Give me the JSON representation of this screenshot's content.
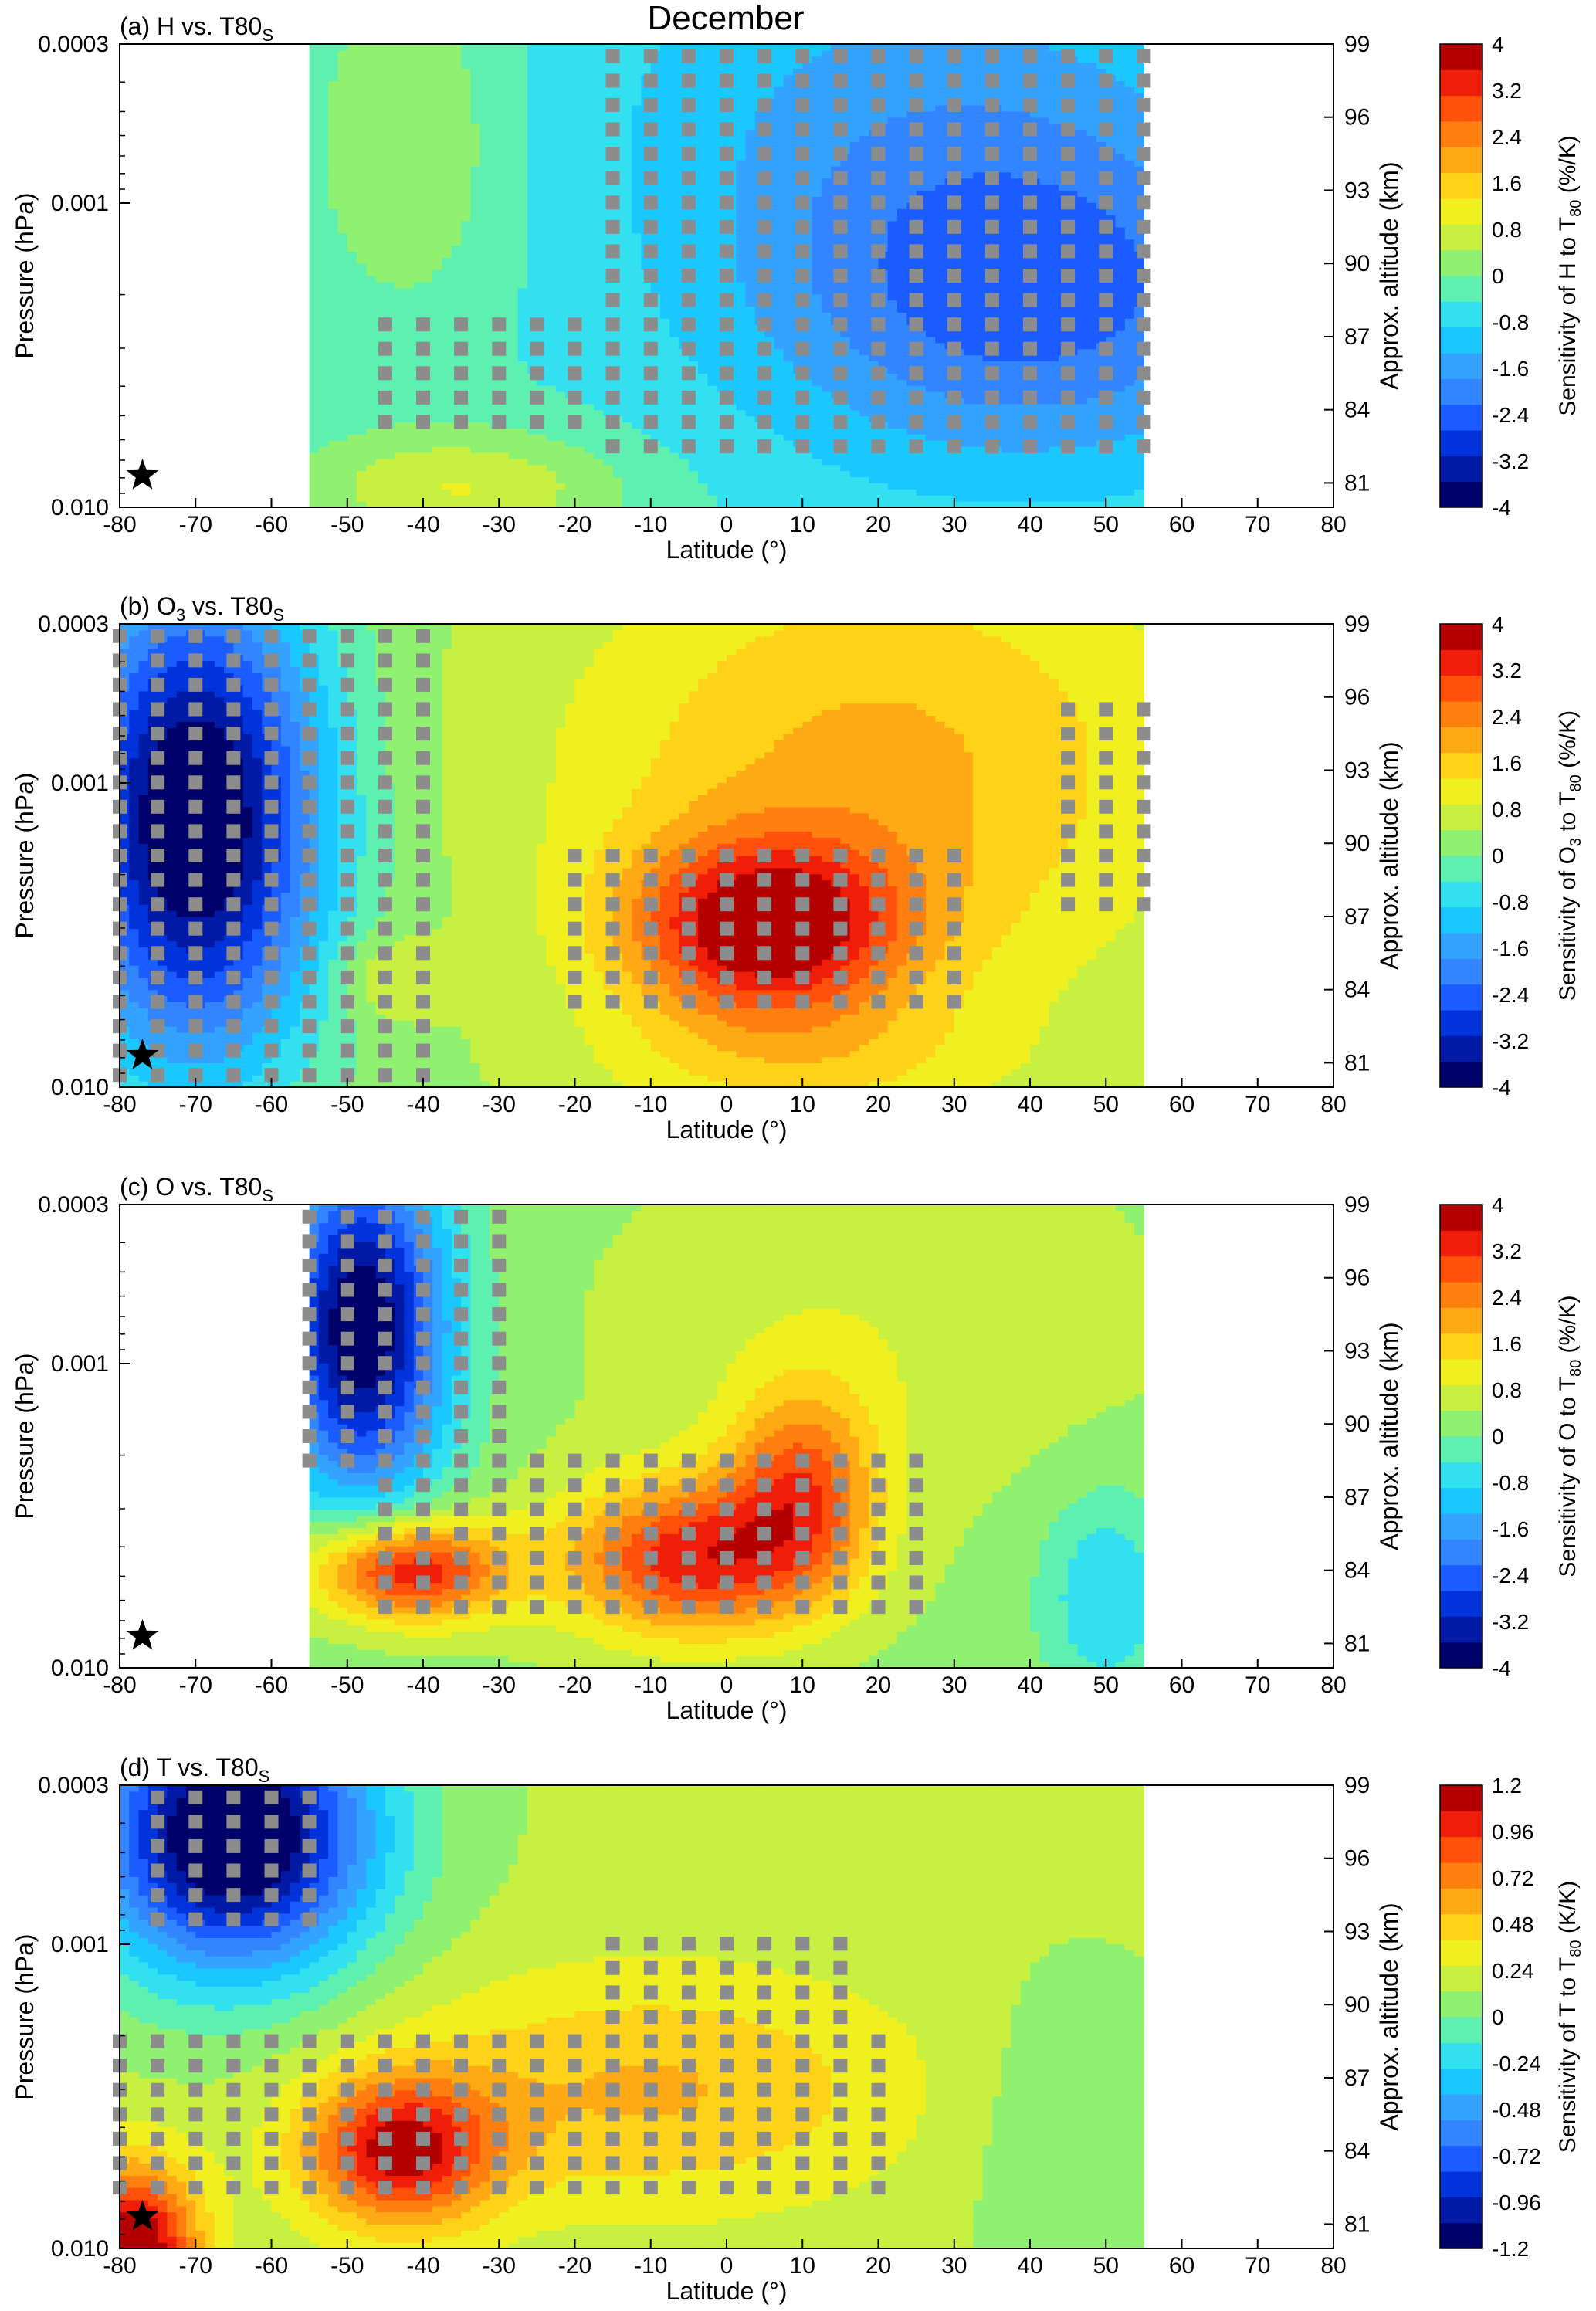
{
  "figure": {
    "title": "December",
    "xlabel": "Latitude (°)",
    "ylabel_left": "Pressure (hPa)",
    "ylabel_right": "Approx. altitude (km)"
  },
  "chart_data": [
    {
      "type": "heatmap",
      "panel": "(a) H vs. T80S",
      "title": "(a) H vs. T80",
      "title_sub": "S",
      "xlabel": "Latitude (°)",
      "ylabel": "Pressure (hPa)",
      "y2label": "Approx. altitude (km)",
      "xlim": [
        -80,
        80
      ],
      "x_ticks": [
        -80,
        -70,
        -60,
        -50,
        -40,
        -30,
        -20,
        -10,
        0,
        10,
        20,
        30,
        40,
        50,
        60,
        70,
        80
      ],
      "y_ticks": [
        "0.0003",
        "0.001",
        "0.010"
      ],
      "y_scale": "log",
      "ylim_hPa": [
        0.01,
        0.0003
      ],
      "y2_ticks": [
        81,
        84,
        87,
        90,
        93,
        96,
        99
      ],
      "data_lat_range": [
        -55,
        55
      ],
      "colorbar": {
        "label": "Sensitivity of H to T",
        "label_sub": "80",
        "unit": " (%/K)",
        "ticks": [
          "4",
          "3.2",
          "2.4",
          "1.6",
          "0.8",
          "0",
          "-0.8",
          "-1.6",
          "-2.4",
          "-3.2",
          "-4"
        ],
        "range": [
          -4,
          4
        ]
      },
      "features": [
        {
          "lat": 40,
          "alt": 88.5,
          "value": -1.9,
          "sx": 26,
          "sy": 5
        },
        {
          "lat": -42,
          "alt": 95,
          "value": 0.9,
          "sx": 9,
          "sy": 5
        },
        {
          "lat": -35,
          "alt": 80.8,
          "value": 1.3,
          "sx": 15,
          "sy": 1.7
        },
        {
          "lat": 25,
          "alt": 97,
          "value": -0.9,
          "sx": 30,
          "sy": 6
        }
      ],
      "background_value": -0.4,
      "stipple_regions": [
        {
          "lat": [
            -45,
            55
          ],
          "alt": [
            83.5,
            88
          ]
        },
        {
          "lat": [
            -15,
            55
          ],
          "alt": [
            82,
            99
          ]
        }
      ],
      "star": {
        "lat": -77,
        "alt": 81.3
      }
    },
    {
      "type": "heatmap",
      "panel": "(b) O3 vs. T80S",
      "title": "(b) O",
      "title_mid": "3",
      "title_end": " vs. T80",
      "title_sub": "S",
      "xlabel": "Latitude (°)",
      "ylabel": "Pressure (hPa)",
      "y2label": "Approx. altitude (km)",
      "xlim": [
        -80,
        80
      ],
      "x_ticks": [
        -80,
        -70,
        -60,
        -50,
        -40,
        -30,
        -20,
        -10,
        0,
        10,
        20,
        30,
        40,
        50,
        60,
        70,
        80
      ],
      "y_ticks": [
        "0.0003",
        "0.001",
        "0.010"
      ],
      "y_scale": "log",
      "ylim_hPa": [
        0.01,
        0.0003
      ],
      "y2_ticks": [
        81,
        84,
        87,
        90,
        93,
        96,
        99
      ],
      "data_lat_range": [
        -80,
        55
      ],
      "colorbar": {
        "label": "Sensitivity of O",
        "label_mid": "3",
        "label_end": " to T",
        "label_sub": "80",
        "unit": " (%/K)",
        "ticks": [
          "4",
          "3.2",
          "2.4",
          "1.6",
          "0.8",
          "0",
          "-0.8",
          "-1.6",
          "-2.4",
          "-3.2",
          "-4"
        ],
        "range": [
          -4,
          4
        ]
      },
      "features": [
        {
          "lat": -70,
          "alt": 91,
          "value": -4.6,
          "sx": 12,
          "sy": 7
        },
        {
          "lat": 5,
          "alt": 86.5,
          "value": 3.2,
          "sx": 13,
          "sy": 2.6
        },
        {
          "lat": 20,
          "alt": 93,
          "value": 1.6,
          "sx": 30,
          "sy": 7
        },
        {
          "lat": -45,
          "alt": 84.5,
          "value": 0.7,
          "sx": 5,
          "sy": 1.3
        },
        {
          "lat": 10,
          "alt": 81,
          "value": 0.8,
          "sx": 20,
          "sy": 2
        }
      ],
      "background_value": 0.3,
      "stipple_regions": [
        {
          "lat": [
            -80,
            -40
          ],
          "alt": [
            80.5,
            99
          ]
        },
        {
          "lat": [
            -20,
            30
          ],
          "alt": [
            83,
            89.5
          ]
        },
        {
          "lat": [
            45,
            55
          ],
          "alt": [
            87,
            96
          ]
        }
      ],
      "star": {
        "lat": -77,
        "alt": 81.3
      }
    },
    {
      "type": "heatmap",
      "panel": "(c) O vs. T80S",
      "title": "(c) O vs. T80",
      "title_sub": "S",
      "xlabel": "Latitude (°)",
      "ylabel": "Pressure (hPa)",
      "y2label": "Approx. altitude (km)",
      "xlim": [
        -80,
        80
      ],
      "x_ticks": [
        -80,
        -70,
        -60,
        -50,
        -40,
        -30,
        -20,
        -10,
        0,
        10,
        20,
        30,
        40,
        50,
        60,
        70,
        80
      ],
      "y_ticks": [
        "0.0003",
        "0.001",
        "0.010"
      ],
      "y_scale": "log",
      "ylim_hPa": [
        0.01,
        0.0003
      ],
      "y2_ticks": [
        81,
        84,
        87,
        90,
        93,
        96,
        99
      ],
      "data_lat_range": [
        -55,
        55
      ],
      "colorbar": {
        "label": "Sensitivity of O to T",
        "label_sub": "80",
        "unit": " (%/K)",
        "ticks": [
          "4",
          "3.2",
          "2.4",
          "1.6",
          "0.8",
          "0",
          "-0.8",
          "-1.6",
          "-2.4",
          "-3.2",
          "-4"
        ],
        "range": [
          -4,
          4
        ]
      },
      "features": [
        {
          "lat": -48,
          "alt": 94,
          "value": -4.4,
          "sx": 8,
          "sy": 5
        },
        {
          "lat": -42,
          "alt": 84,
          "value": 3.4,
          "sx": 9,
          "sy": 1.5
        },
        {
          "lat": -5,
          "alt": 84.5,
          "value": 3.0,
          "sx": 12,
          "sy": 2.3
        },
        {
          "lat": 10,
          "alt": 87.5,
          "value": 2.2,
          "sx": 7,
          "sy": 3
        },
        {
          "lat": 50,
          "alt": 83,
          "value": -1.2,
          "sx": 6,
          "sy": 3
        },
        {
          "lat": 20,
          "alt": 94,
          "value": 0.5,
          "sx": 25,
          "sy": 5
        }
      ],
      "background_value": 0.3,
      "stipple_regions": [
        {
          "lat": [
            -55,
            -30
          ],
          "alt": [
            88,
            99
          ]
        },
        {
          "lat": [
            -45,
            25
          ],
          "alt": [
            82,
            89
          ]
        }
      ],
      "star": {
        "lat": -77,
        "alt": 81.3
      }
    },
    {
      "type": "heatmap",
      "panel": "(d) T vs. T80S",
      "title": "(d) T vs. T80",
      "title_sub": "S",
      "xlabel": "Latitude (°)",
      "ylabel": "Pressure (hPa)",
      "y2label": "Approx. altitude (km)",
      "xlim": [
        -80,
        80
      ],
      "x_ticks": [
        -80,
        -70,
        -60,
        -50,
        -40,
        -30,
        -20,
        -10,
        0,
        10,
        20,
        30,
        40,
        50,
        60,
        70,
        80
      ],
      "y_ticks": [
        "0.0003",
        "0.001",
        "0.010"
      ],
      "y_scale": "log",
      "ylim_hPa": [
        0.01,
        0.0003
      ],
      "y2_ticks": [
        81,
        84,
        87,
        90,
        93,
        96,
        99
      ],
      "data_lat_range": [
        -80,
        55
      ],
      "colorbar": {
        "label": "Sensitivity of T to T",
        "label_sub": "80",
        "unit": " (K/K)",
        "ticks": [
          "1.2",
          "0.96",
          "0.72",
          "0.48",
          "0.24",
          "0",
          "-0.24",
          "-0.48",
          "-0.72",
          "-0.96",
          "-1.2"
        ],
        "range": [
          -1.2,
          1.2
        ]
      },
      "features": [
        {
          "lat": -65,
          "alt": 97,
          "value": -1.5,
          "sx": 13,
          "sy": 4
        },
        {
          "lat": -43,
          "alt": 84,
          "value": 0.9,
          "sx": 9,
          "sy": 2.2
        },
        {
          "lat": -78,
          "alt": 80,
          "value": 1.1,
          "sx": 6,
          "sy": 2.5
        },
        {
          "lat": -10,
          "alt": 86.5,
          "value": 0.4,
          "sx": 25,
          "sy": 3.5
        },
        {
          "lat": 45,
          "alt": 85,
          "value": -0.15,
          "sx": 10,
          "sy": 4
        }
      ],
      "background_value": 0.15,
      "stipple_regions": [
        {
          "lat": [
            -75,
            -55
          ],
          "alt": [
            93,
            99
          ]
        },
        {
          "lat": [
            -80,
            20
          ],
          "alt": [
            82.5,
            88.5
          ]
        },
        {
          "lat": [
            -15,
            15
          ],
          "alt": [
            88,
            93
          ]
        }
      ],
      "star": {
        "lat": -77,
        "alt": 81.3
      }
    }
  ],
  "colormap": [
    "#00006a",
    "#001aa6",
    "#0033d9",
    "#1a5cff",
    "#3385ff",
    "#33a3ff",
    "#1ac8ff",
    "#33e0f0",
    "#5ef0b0",
    "#90f070",
    "#c8f040",
    "#f0f020",
    "#ffd21a",
    "#ffaa14",
    "#ff8010",
    "#ff500c",
    "#f01e08",
    "#b40000"
  ]
}
